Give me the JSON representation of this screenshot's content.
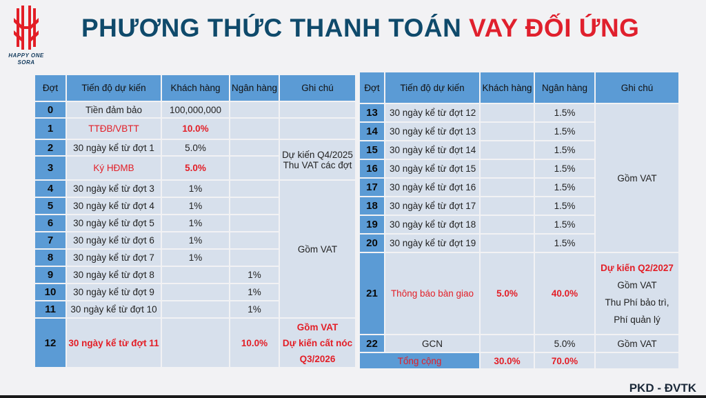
{
  "brand": {
    "logo_text": "HAPPY ONE SORA",
    "footer": "PKD - ĐVTK"
  },
  "title": {
    "main": "PHƯƠNG THỨC THANH TOÁN",
    "accent": "VAY ĐỐI ỨNG"
  },
  "colors": {
    "header_bg": "#5b9bd5",
    "cell_bg": "#d7e0ec",
    "accent": "#e31e26",
    "title": "#0f4a6b"
  },
  "headers": {
    "c1": "Đợt",
    "c2": "Tiến độ dự kiến",
    "c3": "Khách hàng",
    "c4": "Ngân hàng",
    "c5": "Ghi chú"
  },
  "left": {
    "r0": {
      "n": "0",
      "p": "Tiền đảm bảo",
      "k": "100,000,000",
      "b": ""
    },
    "r1": {
      "n": "1",
      "p": "TTĐB/VBTT",
      "k": "10.0%",
      "b": ""
    },
    "r2": {
      "n": "2",
      "p": "30 ngày kể từ đợt 1",
      "k": "5.0%",
      "b": ""
    },
    "r3": {
      "n": "3",
      "p": "Ký HĐMB",
      "k": "5.0%",
      "b": ""
    },
    "r4": {
      "n": "4",
      "p": "30 ngày kể từ đợt 3",
      "k": "1%",
      "b": ""
    },
    "r5": {
      "n": "5",
      "p": "30 ngày kể từ đợt 4",
      "k": "1%",
      "b": ""
    },
    "r6": {
      "n": "6",
      "p": "30 ngày kể từ đợt 5",
      "k": "1%",
      "b": ""
    },
    "r7": {
      "n": "7",
      "p": "30 ngày kể từ đợt 6",
      "k": "1%",
      "b": ""
    },
    "r8": {
      "n": "8",
      "p": "30 ngày kể từ đợt 7",
      "k": "1%",
      "b": ""
    },
    "r9": {
      "n": "9",
      "p": "30 ngày kể từ đợt 8",
      "k": "",
      "b": "1%"
    },
    "r10": {
      "n": "10",
      "p": "30 ngày kể từ đợt 9",
      "k": "",
      "b": "1%"
    },
    "r11": {
      "n": "11",
      "p": "30 ngày kể từ đợt 10",
      "k": "",
      "b": "1%"
    },
    "r12": {
      "n": "12",
      "p": "30 ngày kể từ đợt 11",
      "k": "",
      "b": "10.0%"
    },
    "note_a1": "Dự kiến Q4/2025",
    "note_a2": "Thu VAT các đợt",
    "note_b": "Gồm VAT",
    "note_c1": "Gồm VAT",
    "note_c2": "Dự kiến cất nóc",
    "note_c3": "Q3/2026"
  },
  "right": {
    "r13": {
      "n": "13",
      "p": "30 ngày kể từ đợt 12",
      "k": "",
      "b": "1.5%"
    },
    "r14": {
      "n": "14",
      "p": "30 ngày kể từ đợt 13",
      "k": "",
      "b": "1.5%"
    },
    "r15": {
      "n": "15",
      "p": "30 ngày kể từ đợt 14",
      "k": "",
      "b": "1.5%"
    },
    "r16": {
      "n": "16",
      "p": "30 ngày kể từ đợt 15",
      "k": "",
      "b": "1.5%"
    },
    "r17": {
      "n": "17",
      "p": "30 ngày kể từ đợt 16",
      "k": "",
      "b": "1.5%"
    },
    "r18": {
      "n": "18",
      "p": "30 ngày kể từ đợt 17",
      "k": "",
      "b": "1.5%"
    },
    "r19": {
      "n": "19",
      "p": "30 ngày kể từ đợt 18",
      "k": "",
      "b": "1.5%"
    },
    "r20": {
      "n": "20",
      "p": "30 ngày kể từ đợt 19",
      "k": "",
      "b": "1.5%"
    },
    "r21": {
      "n": "21",
      "p": "Thông báo bàn giao",
      "k": "5.0%",
      "b": "40.0%"
    },
    "r22": {
      "n": "22",
      "p": "GCN",
      "k": "",
      "b": "5.0%"
    },
    "total": {
      "label": "Tổng cộng",
      "k": "30.0%",
      "b": "70.0%"
    },
    "note_a": "Gồm VAT",
    "note_b1": "Dự kiến Q2/2027",
    "note_b2": "Gồm VAT",
    "note_b3": "Thu Phí bảo trì,",
    "note_b4": "Phí quản lý",
    "note_c": "Gồm VAT"
  }
}
